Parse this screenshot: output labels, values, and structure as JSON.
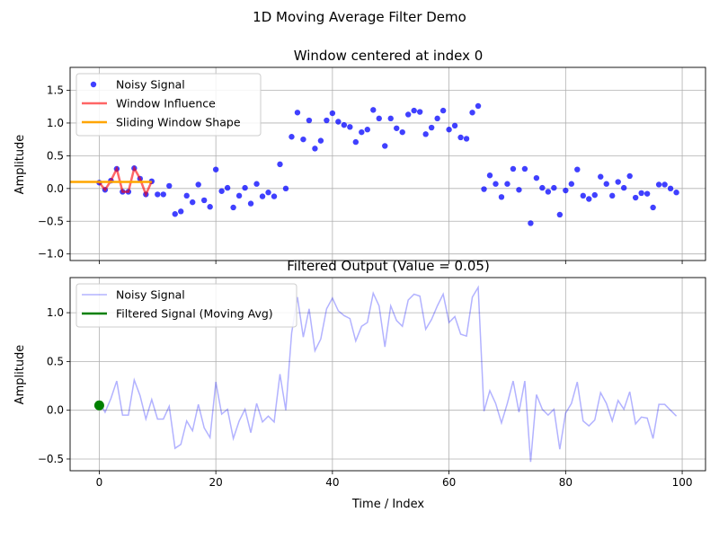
{
  "figure": {
    "suptitle": "1D Moving Average Filter Demo"
  },
  "colors": {
    "noisy": "#0000ff",
    "window": "#ff0000",
    "window_shape": "#ffa500",
    "filtered": "#008000",
    "grid": "#b0b0b0"
  },
  "chart_data": [
    {
      "type": "scatter",
      "title": "Window centered at index 0",
      "xlabel": "",
      "ylabel": "Amplitude",
      "xlim": [
        -5,
        104
      ],
      "ylim": [
        -1.1,
        1.85
      ],
      "xticks": [
        0,
        20,
        40,
        60,
        80,
        100
      ],
      "xtick_labels_visible": false,
      "yticks": [
        -1.0,
        -0.5,
        0.0,
        0.5,
        1.0,
        1.5
      ],
      "ytick_labels": [
        "−1.0",
        "−0.5",
        "0.0",
        "0.5",
        "1.0",
        "1.5"
      ],
      "grid": true,
      "legend": "upper-left",
      "series": [
        {
          "name": "Noisy Signal",
          "kind": "scatter",
          "color": "#0000ff",
          "alpha": 0.75,
          "x": "indices_0_99",
          "y_ref": "signal"
        },
        {
          "name": "Window Influence",
          "kind": "line",
          "color": "#ff0000",
          "alpha": 0.6,
          "x": [
            0,
            1,
            2,
            3,
            4,
            5,
            6,
            7,
            8,
            9
          ],
          "y": [
            0.09,
            -0.02,
            0.12,
            0.3,
            -0.05,
            -0.05,
            0.31,
            0.15,
            -0.09,
            0.11
          ]
        },
        {
          "name": "Sliding Window Shape",
          "kind": "line",
          "color": "#ffa500",
          "alpha": 1,
          "x": [
            -5,
            9
          ],
          "y": [
            0.1,
            0.1
          ]
        }
      ]
    },
    {
      "type": "line",
      "title": "Filtered Output (Value = 0.05)",
      "xlabel": "Time / Index",
      "ylabel": "Amplitude",
      "xlim": [
        -5,
        104
      ],
      "ylim": [
        -0.62,
        1.36
      ],
      "xticks": [
        0,
        20,
        40,
        60,
        80,
        100
      ],
      "xtick_labels": [
        "0",
        "20",
        "40",
        "60",
        "80",
        "100"
      ],
      "yticks": [
        -0.5,
        0.0,
        0.5,
        1.0
      ],
      "ytick_labels": [
        "−0.5",
        "0.0",
        "0.5",
        "1.0"
      ],
      "grid": true,
      "legend": "upper-left",
      "series": [
        {
          "name": "Noisy Signal",
          "kind": "line",
          "color": "#0000ff",
          "alpha": 0.3,
          "x": "indices_0_99",
          "y_ref": "signal"
        },
        {
          "name": "Filtered Signal (Moving Avg)",
          "kind": "line",
          "color": "#008000",
          "alpha": 1,
          "x": [
            0
          ],
          "y": [
            0.05
          ]
        }
      ]
    }
  ],
  "signal": [
    0.09,
    -0.02,
    0.12,
    0.3,
    -0.05,
    -0.05,
    0.31,
    0.15,
    -0.09,
    0.11,
    -0.09,
    -0.09,
    0.04,
    -0.39,
    -0.35,
    -0.11,
    -0.21,
    0.06,
    -0.18,
    -0.28,
    0.29,
    -0.04,
    0.01,
    -0.29,
    -0.11,
    0.01,
    -0.23,
    0.07,
    -0.12,
    -0.06,
    -0.12,
    0.37,
    0.0,
    0.79,
    1.16,
    0.75,
    1.04,
    0.61,
    0.73,
    1.04,
    1.15,
    1.02,
    0.97,
    0.94,
    0.71,
    0.86,
    0.9,
    1.2,
    1.07,
    0.65,
    1.07,
    0.92,
    0.86,
    1.13,
    1.19,
    1.17,
    0.83,
    0.93,
    1.07,
    1.19,
    0.9,
    0.96,
    0.78,
    0.76,
    1.16,
    1.26,
    -0.01,
    0.2,
    0.07,
    -0.13,
    0.07,
    0.3,
    -0.02,
    0.3,
    -0.53,
    0.16,
    0.01,
    -0.05,
    0.01,
    -0.4,
    -0.03,
    0.07,
    0.29,
    -0.11,
    -0.16,
    -0.1,
    0.18,
    0.07,
    -0.11,
    0.1,
    0.01,
    0.19,
    -0.14,
    -0.07,
    -0.08,
    -0.29,
    0.06,
    0.06,
    0.0,
    -0.06
  ]
}
